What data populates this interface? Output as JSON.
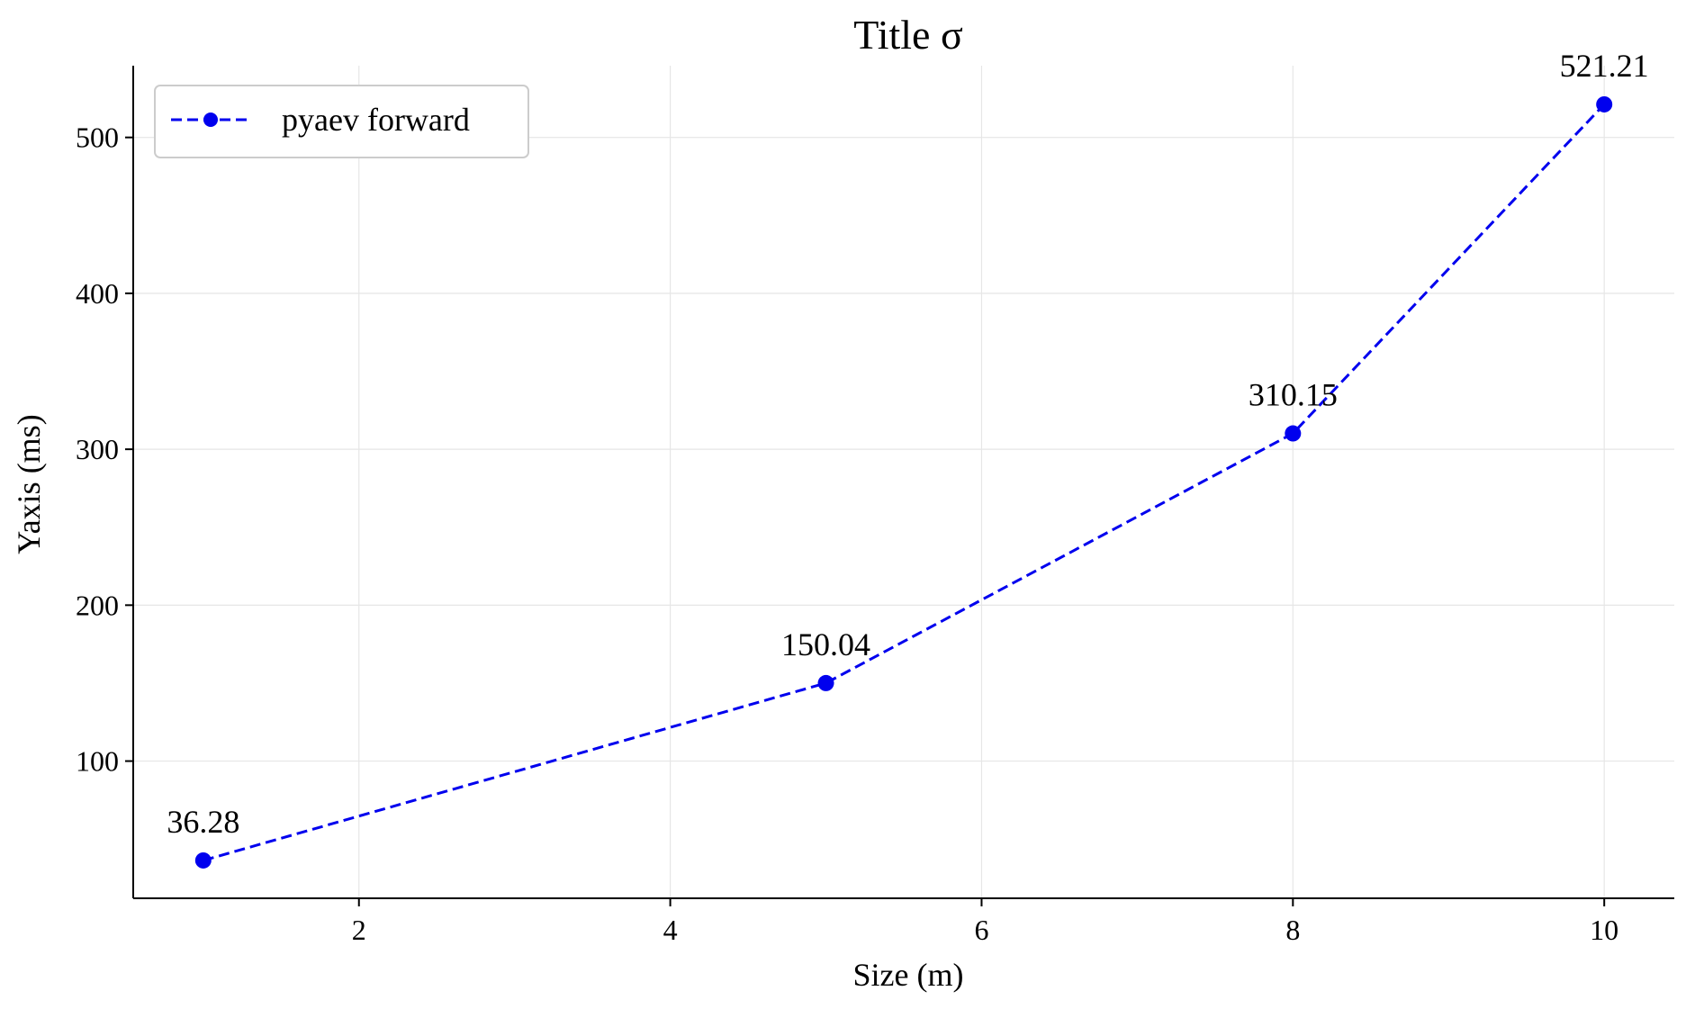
{
  "chart_data": {
    "type": "line",
    "title": "Title σ",
    "xlabel": "Size (m)",
    "ylabel": "Yaxis (ms)",
    "xlim": [
      0.55,
      10.45
    ],
    "ylim": [
      12,
      546
    ],
    "xticks": [
      2,
      4,
      6,
      8,
      10
    ],
    "yticks": [
      100,
      200,
      300,
      400,
      500
    ],
    "grid": true,
    "legend_position": "top-left",
    "series": [
      {
        "name": "pyaev forward",
        "color": "#0000ee",
        "line_style": "dashed",
        "marker": "circle",
        "x": [
          1,
          5,
          8,
          10
        ],
        "y": [
          36.28,
          150.04,
          310.15,
          521.21
        ],
        "labels": [
          "36.28",
          "150.04",
          "310.15",
          "521.21"
        ]
      }
    ]
  }
}
